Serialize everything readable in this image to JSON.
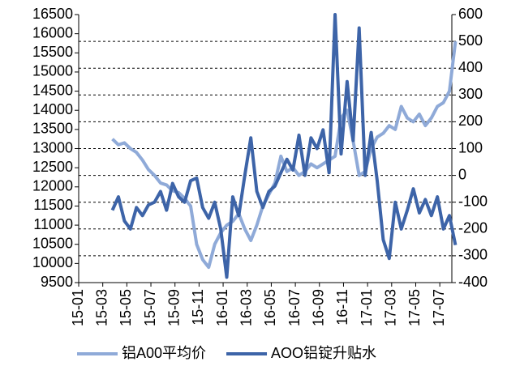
{
  "chart_data": {
    "type": "line",
    "x": [
      2.8,
      3.3,
      3.8,
      4.3,
      4.8,
      5.3,
      5.8,
      6.3,
      6.8,
      7.3,
      7.8,
      8.3,
      8.8,
      9.3,
      9.8,
      10.3,
      10.8,
      11.3,
      11.8,
      12.3,
      12.8,
      13.3,
      13.8,
      14.3,
      14.8,
      15.3,
      15.8,
      16.3,
      16.8,
      17.3,
      17.8,
      18.3,
      18.8,
      19.3,
      19.8,
      20.3,
      20.8,
      21.3,
      21.8,
      22.3,
      22.8,
      23.3,
      23.8,
      24.3,
      24.8,
      25.3,
      25.8,
      26.3,
      26.8,
      27.3,
      27.8,
      28.3,
      28.8,
      29.3,
      29.8,
      30.3,
      30.8,
      31.3
    ],
    "xlim": [
      0,
      31
    ],
    "xticks": [
      {
        "value": 0,
        "label": "15-01"
      },
      {
        "value": 2,
        "label": "15-03"
      },
      {
        "value": 4,
        "label": "15-05"
      },
      {
        "value": 6,
        "label": "15-07"
      },
      {
        "value": 8,
        "label": "15-09"
      },
      {
        "value": 10,
        "label": "15-11"
      },
      {
        "value": 12,
        "label": "16-01"
      },
      {
        "value": 14,
        "label": "16-03"
      },
      {
        "value": 16,
        "label": "16-05"
      },
      {
        "value": 18,
        "label": "16-07"
      },
      {
        "value": 20,
        "label": "16-09"
      },
      {
        "value": 22,
        "label": "16-11"
      },
      {
        "value": 24,
        "label": "17-01"
      },
      {
        "value": 26,
        "label": "17-03"
      },
      {
        "value": 28,
        "label": "17-05"
      },
      {
        "value": 30,
        "label": "17-07"
      }
    ],
    "ylim": [
      9500,
      16500
    ],
    "yticks": [
      9500,
      10000,
      10500,
      11000,
      11500,
      12000,
      12500,
      13000,
      13500,
      14000,
      14500,
      15000,
      15500,
      16000,
      16500
    ],
    "y2lim": [
      -400,
      600
    ],
    "y2ticks": [
      -400,
      -300,
      -200,
      -100,
      0,
      100,
      200,
      300,
      400,
      500,
      600
    ],
    "grid": "y2",
    "legend": "bottom",
    "series": [
      {
        "name": "铝A00平均价",
        "color": "#8faad8",
        "values": [
          13250,
          13100,
          13150,
          13000,
          12900,
          12700,
          12450,
          12300,
          12100,
          12050,
          11900,
          11850,
          11700,
          11500,
          10500,
          10100,
          9900,
          10500,
          10800,
          11000,
          11100,
          11300,
          10900,
          10600,
          11000,
          11500,
          11800,
          12100,
          12800,
          12400,
          12500,
          12300,
          12400,
          12600,
          12500,
          12600,
          12700,
          12800,
          13800,
          14000,
          13200,
          12300,
          12400,
          13000,
          13300,
          13400,
          13600,
          13500,
          14100,
          13800,
          13700,
          13900,
          13600,
          13800,
          14100,
          14200,
          14500,
          15800
        ]
      },
      {
        "name": "AOO铝锭升贴水",
        "color": "#3d64a8",
        "axis": "y2",
        "values": [
          -130,
          -80,
          -170,
          -200,
          -120,
          -150,
          -110,
          -100,
          -60,
          -130,
          -30,
          -80,
          -100,
          -20,
          -10,
          -120,
          -160,
          -100,
          -200,
          -380,
          -80,
          -150,
          0,
          140,
          -60,
          -120,
          -60,
          -40,
          10,
          60,
          20,
          150,
          0,
          140,
          100,
          170,
          10,
          600,
          80,
          350,
          130,
          550,
          0,
          160,
          -20,
          -240,
          -310,
          -100,
          -200,
          -130,
          -50,
          -140,
          -90,
          -150,
          -80,
          -200,
          -150,
          -260
        ]
      }
    ]
  }
}
